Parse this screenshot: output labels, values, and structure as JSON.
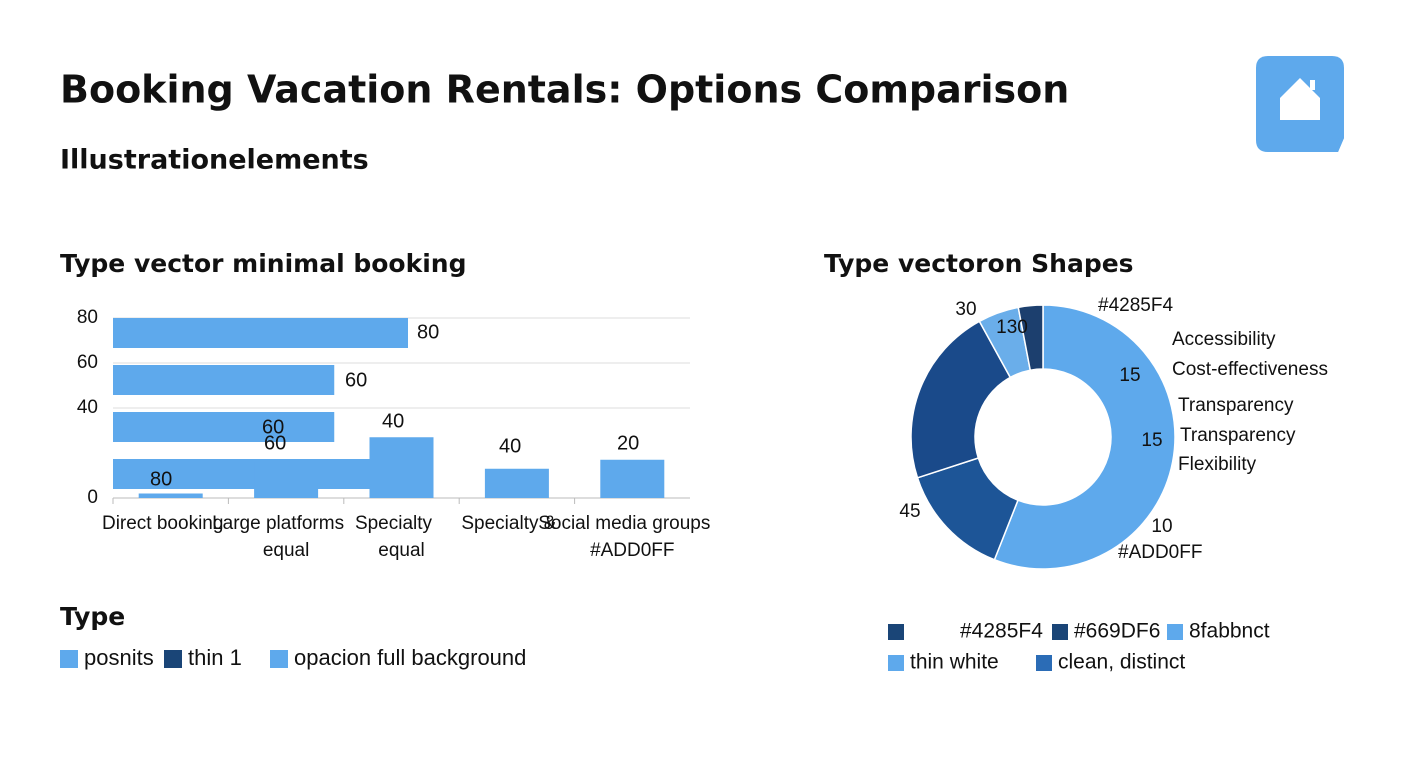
{
  "header": {
    "title": "Booking Vacation Rentals: Options Comparison",
    "subtitle": "Illustrationelements"
  },
  "chart_data": [
    {
      "type": "bar",
      "title": "Type vector minimal booking",
      "categories": [
        "Direct booking",
        "Large platforms",
        "Specialty",
        "Specialty &",
        "Social media groups"
      ],
      "category_notes": [
        null,
        "equal",
        "equal",
        null,
        "#ADD0FF"
      ],
      "values": [
        2,
        16,
        27,
        13,
        17
      ],
      "color": "#5ea9ec",
      "rows": {
        "values": [
          80,
          60,
          60,
          80
        ],
        "color": "#5ea9ec"
      },
      "annotations": [
        "80",
        "60",
        "60",
        "80",
        "60",
        "40",
        "40",
        "20"
      ],
      "ylim": [
        0,
        80
      ],
      "yticks": [
        0,
        40,
        60,
        80
      ],
      "grid": true,
      "legend": {
        "title": "Type",
        "entries": [
          {
            "label": "posnits",
            "color": "#5ea9ec"
          },
          {
            "label": "thin 1",
            "color": "#1a4577"
          },
          {
            "label": "opacion  full background",
            "color": "#5ea9ec"
          }
        ]
      }
    },
    {
      "type": "donut",
      "title": "Type vectoron Shapes",
      "values": [
        56,
        14,
        22,
        5,
        3
      ],
      "colors": [
        "#5ea9ec",
        "#1d5597",
        "#1a4a8a",
        "#6aaeea",
        "#1c3f6e"
      ],
      "annotations": [
        "30",
        "130",
        "#4285F4",
        "Accessibility",
        "Cost-effectiveness",
        "15",
        "Transparency",
        "Transparency",
        "15",
        "Flexibility",
        "45",
        "10",
        "#ADD0FF"
      ],
      "legend": {
        "entries": [
          {
            "color": "#1a4577"
          },
          {
            "label": "#4285F4",
            "color": null
          },
          {
            "label": "#669DF6",
            "color": "#1a4577"
          },
          {
            "label": "8fabbnct",
            "color": "#5ea9ec"
          },
          {
            "label": "thin white",
            "color": "#5ea9ec"
          },
          {
            "label": "clean, distinct",
            "color": "#2b6cb6"
          }
        ]
      }
    }
  ]
}
